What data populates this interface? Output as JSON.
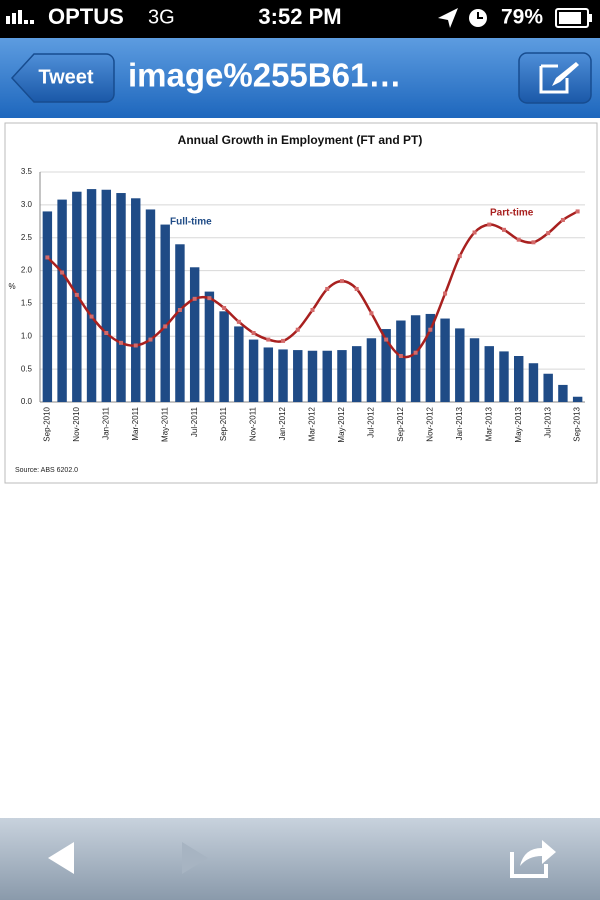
{
  "status_bar": {
    "carrier": "OPTUS",
    "network": "3G",
    "time": "3:52 PM",
    "battery": "79%"
  },
  "nav_bar": {
    "back_button": "Tweet",
    "title": "image%255B61…"
  },
  "chart_data": {
    "type": "bar",
    "title": "Annual Growth in Employment (FT and PT)",
    "y_label": "%",
    "source": "Source: ABS 6202.0",
    "categories": [
      "Sep-2010",
      null,
      "Nov-2010",
      null,
      "Jan-2011",
      null,
      "Mar-2011",
      null,
      "May-2011",
      null,
      "Jul-2011",
      null,
      "Sep-2011",
      null,
      "Nov-2011",
      null,
      "Jan-2012",
      null,
      "Mar-2012",
      null,
      "May-2012",
      null,
      "Jul-2012",
      null,
      "Sep-2012",
      null,
      "Nov-2012",
      null,
      "Jan-2013",
      null,
      "Mar-2013",
      null,
      "May-2013",
      null,
      "Jul-2013",
      null,
      "Sep-2013"
    ],
    "series": [
      {
        "name": "Full-time",
        "type": "bar",
        "color": "#1f4b86",
        "values": [
          2.9,
          3.08,
          3.2,
          3.24,
          3.23,
          3.18,
          3.1,
          2.93,
          2.7,
          2.4,
          2.05,
          1.68,
          1.38,
          1.15,
          0.95,
          0.83,
          0.8,
          0.79,
          0.78,
          0.78,
          0.79,
          0.85,
          0.97,
          1.11,
          1.24,
          1.32,
          1.34,
          1.27,
          1.12,
          0.97,
          0.85,
          0.77,
          0.7,
          0.59,
          0.43,
          0.26,
          0.08
        ]
      },
      {
        "name": "Part-time",
        "type": "line",
        "color": "#a8201f",
        "values": [
          2.2,
          1.97,
          1.63,
          1.3,
          1.05,
          0.9,
          0.86,
          0.95,
          1.15,
          1.4,
          1.57,
          1.58,
          1.43,
          1.22,
          1.05,
          0.95,
          0.93,
          1.1,
          1.4,
          1.72,
          1.84,
          1.72,
          1.35,
          0.95,
          0.7,
          0.75,
          1.1,
          1.65,
          2.22,
          2.58,
          2.7,
          2.62,
          2.47,
          2.43,
          2.57,
          2.77,
          2.9
        ]
      }
    ],
    "ylim": [
      0,
      3.5
    ],
    "yticks": [
      {
        "value": 0,
        "label": "0.0"
      },
      0.5,
      {
        "value": 1,
        "label": "1.0"
      },
      1.5,
      {
        "value": 2,
        "label": "2.0"
      },
      2.5,
      {
        "value": 3,
        "label": "3.0"
      },
      3.5
    ],
    "grid": true
  }
}
